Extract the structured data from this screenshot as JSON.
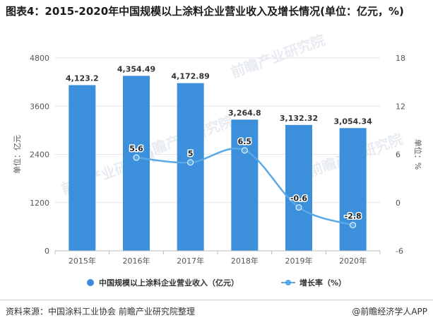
{
  "title": "图表4：2015-2020年中国规模以上涂料企业营业收入及增长情况(单位：亿元，%)",
  "source": "资料来源：中国涂料工业协会 前瞻产业研究院整理",
  "credit": "@前瞻经济学人APP",
  "watermark": "前瞻产业研究院",
  "colors": {
    "bar": "#3b8fdb",
    "line": "#5aa9e6",
    "grid": "#e6e6e6",
    "axis_text": "#555555"
  },
  "chart_data": {
    "type": "bar",
    "categories": [
      "2015年",
      "2016年",
      "2017年",
      "2018年",
      "2019年",
      "2020年"
    ],
    "series": [
      {
        "name": "中国规模以上涂料企业营业收入（亿元）",
        "type": "bar",
        "axis": "left",
        "values": [
          4123.2,
          4354.49,
          4172.89,
          3264.8,
          3132.32,
          3054.34
        ],
        "labels": [
          "4,123.2",
          "4,354.49",
          "4,172.89",
          "3,264.8",
          "3,132.32",
          "3,054.34"
        ]
      },
      {
        "name": "增长率（%）",
        "type": "line",
        "axis": "right",
        "values": [
          null,
          5.6,
          5,
          6.5,
          -0.6,
          -2.8
        ],
        "labels": [
          "",
          "5.6",
          "5",
          "6.5",
          "-0.6",
          "-2.8"
        ]
      }
    ],
    "ylabel": "单位：亿元",
    "y2label": "单位：%",
    "ylim": [
      0,
      4800
    ],
    "yticks": [
      0,
      1200,
      2400,
      3600,
      4800
    ],
    "y2lim": [
      -6,
      18
    ],
    "y2ticks": [
      -6,
      0,
      6,
      12,
      18
    ],
    "grid": true,
    "legend": "bottom"
  }
}
